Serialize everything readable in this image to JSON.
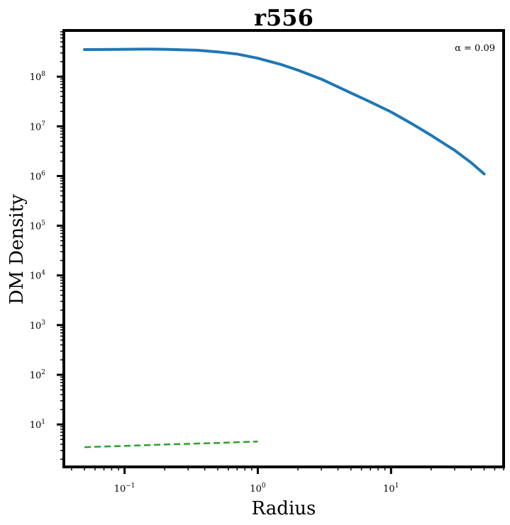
{
  "chart_data": {
    "type": "line",
    "title": "r556",
    "xlabel": "Radius",
    "ylabel": "DM Density",
    "xscale": "log",
    "yscale": "log",
    "xlim": [
      0.035,
      70
    ],
    "ylim": [
      1.4,
      850000000.0
    ],
    "x_ticks": [
      {
        "value": 0.1,
        "base": "10",
        "exp": "−1"
      },
      {
        "value": 1,
        "base": "10",
        "exp": "0"
      },
      {
        "value": 10,
        "base": "10",
        "exp": "1"
      }
    ],
    "y_ticks": [
      {
        "value": 10,
        "base": "10",
        "exp": "1"
      },
      {
        "value": 100,
        "base": "10",
        "exp": "2"
      },
      {
        "value": 1000,
        "base": "10",
        "exp": "3"
      },
      {
        "value": 10000,
        "base": "10",
        "exp": "4"
      },
      {
        "value": 100000,
        "base": "10",
        "exp": "5"
      },
      {
        "value": 1000000,
        "base": "10",
        "exp": "6"
      },
      {
        "value": 10000000,
        "base": "10",
        "exp": "7"
      },
      {
        "value": 100000000,
        "base": "10",
        "exp": "8"
      }
    ],
    "annotation": "α = 0.09",
    "legend": "none",
    "grid": false,
    "series": [
      {
        "color": "#1f77b4",
        "style": "solid",
        "x": [
          0.05,
          0.1,
          0.15,
          0.2,
          0.35,
          0.5,
          0.7,
          1.0,
          1.5,
          2.0,
          3.0,
          5.0,
          7.0,
          10.0,
          15.0,
          20.0,
          30.0,
          40.0,
          50.0
        ],
        "y": [
          350000000.0,
          355000000.0,
          360000000.0,
          355000000.0,
          340000000.0,
          315000000.0,
          285000000.0,
          235000000.0,
          175000000.0,
          135000000.0,
          89000000.0,
          47000000.0,
          31000000.0,
          19500000.0,
          10500000.0,
          6600000.0,
          3300000.0,
          1850000.0,
          1100000.0
        ]
      },
      {
        "color": "#2ca02c",
        "style": "dashed",
        "x": [
          0.05,
          0.1,
          0.2,
          0.5,
          1.0
        ],
        "y": [
          3.5,
          3.7,
          3.95,
          4.25,
          4.55
        ]
      }
    ]
  }
}
